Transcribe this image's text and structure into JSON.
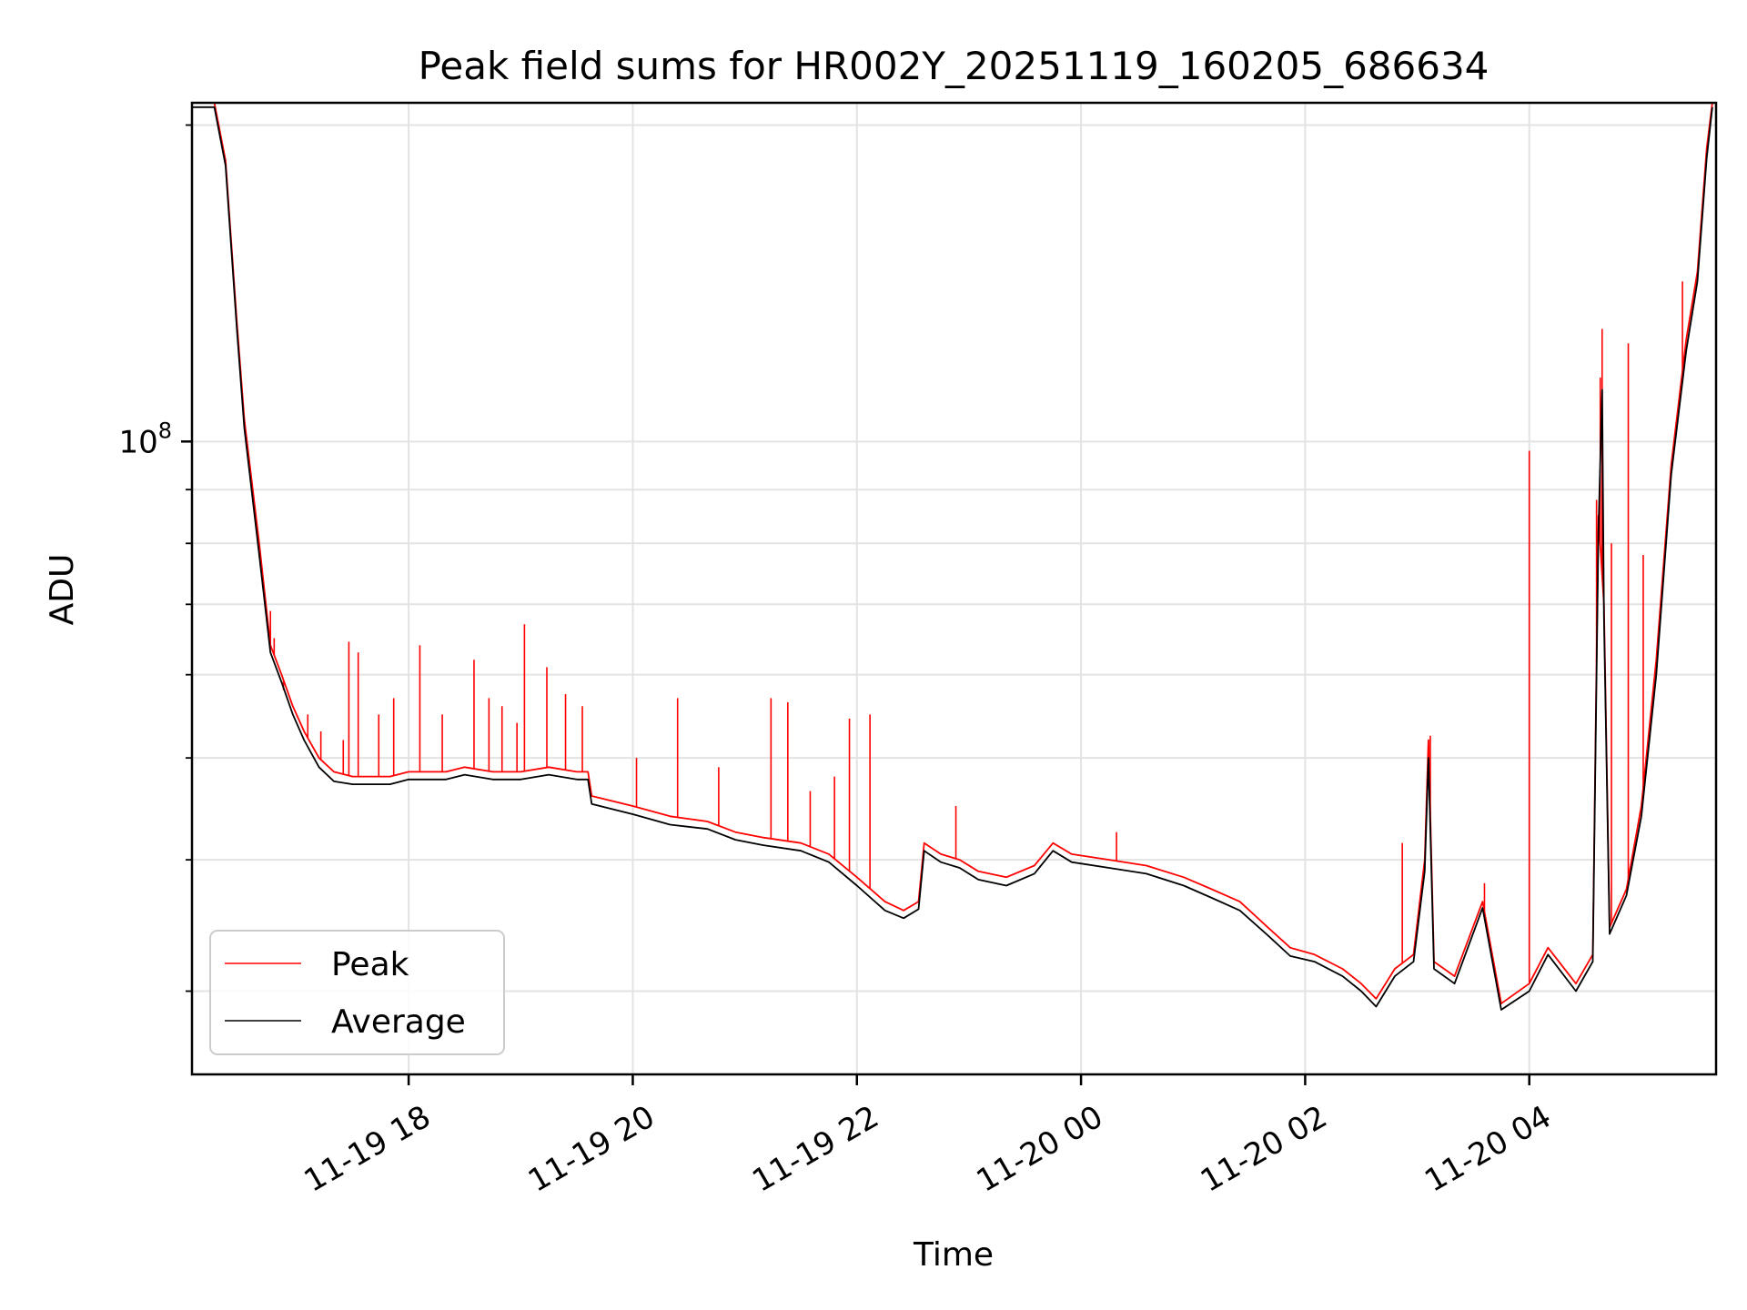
{
  "chart_data": {
    "type": "line",
    "title": "Peak field sums for HR002Y_20251119_160205_686634",
    "xlabel": "Time",
    "ylabel": "ADU",
    "y_scale": "log",
    "xlim": [
      "2025-11-19 16:04",
      "2025-11-20 05:40"
    ],
    "ylim": [
      25000000,
      210000000
    ],
    "grid": true,
    "legend_position": "lower-left",
    "x_ticks": [
      "2025-11-19 18:00",
      "2025-11-19 20:00",
      "2025-11-19 22:00",
      "2025-11-20 00:00",
      "2025-11-20 02:00",
      "2025-11-20 04:00"
    ],
    "x_tick_labels": [
      "11-19 18",
      "11-19 20",
      "11-19 22",
      "11-20 00",
      "11-20 02",
      "11-20 04"
    ],
    "y_major_ticks": [
      100000000
    ],
    "y_major_tick_labels": [
      {
        "base": "10",
        "exp": "8"
      }
    ],
    "y_minor_ticks": [
      30000000,
      40000000,
      50000000,
      60000000,
      70000000,
      80000000,
      90000000,
      200000000
    ],
    "series": [
      {
        "name": "Peak",
        "color": "#ff0000",
        "points": [
          [
            "2025-11-19 16:04",
            210000000
          ],
          [
            "2025-11-19 16:16",
            210000000
          ],
          [
            "2025-11-19 16:22",
            185000000
          ],
          [
            "2025-11-19 16:28",
            130000000
          ],
          [
            "2025-11-19 16:32",
            105000000
          ],
          [
            "2025-11-19 16:40",
            80000000
          ],
          [
            "2025-11-19 16:46",
            64000000
          ],
          [
            "2025-11-19 16:52",
            60000000
          ],
          [
            "2025-11-19 16:58",
            56000000
          ],
          [
            "2025-11-19 17:04",
            53000000
          ],
          [
            "2025-11-19 17:12",
            50000000
          ],
          [
            "2025-11-19 17:20",
            48500000
          ],
          [
            "2025-11-19 17:30",
            48000000
          ],
          [
            "2025-11-19 17:40",
            48000000
          ],
          [
            "2025-11-19 17:50",
            48000000
          ],
          [
            "2025-11-19 18:00",
            48500000
          ],
          [
            "2025-11-19 18:20",
            48500000
          ],
          [
            "2025-11-19 18:30",
            49000000
          ],
          [
            "2025-11-19 18:45",
            48500000
          ],
          [
            "2025-11-19 19:00",
            48500000
          ],
          [
            "2025-11-19 19:15",
            49000000
          ],
          [
            "2025-11-19 19:30",
            48500000
          ],
          [
            "2025-11-19 19:36",
            48500000
          ],
          [
            "2025-11-19 19:38",
            46000000
          ],
          [
            "2025-11-19 20:00",
            45000000
          ],
          [
            "2025-11-19 20:20",
            44000000
          ],
          [
            "2025-11-19 20:40",
            43500000
          ],
          [
            "2025-11-19 20:55",
            42500000
          ],
          [
            "2025-11-19 21:10",
            42000000
          ],
          [
            "2025-11-19 21:30",
            41500000
          ],
          [
            "2025-11-19 21:45",
            40500000
          ],
          [
            "2025-11-19 22:00",
            38500000
          ],
          [
            "2025-11-19 22:15",
            36500000
          ],
          [
            "2025-11-19 22:25",
            35800000
          ],
          [
            "2025-11-19 22:33",
            36500000
          ],
          [
            "2025-11-19 22:36",
            41500000
          ],
          [
            "2025-11-19 22:45",
            40500000
          ],
          [
            "2025-11-19 22:55",
            40000000
          ],
          [
            "2025-11-19 23:05",
            39000000
          ],
          [
            "2025-11-19 23:20",
            38500000
          ],
          [
            "2025-11-19 23:35",
            39500000
          ],
          [
            "2025-11-19 23:45",
            41500000
          ],
          [
            "2025-11-19 23:55",
            40500000
          ],
          [
            "2025-11-20 00:15",
            40000000
          ],
          [
            "2025-11-20 00:35",
            39500000
          ],
          [
            "2025-11-20 00:55",
            38500000
          ],
          [
            "2025-11-20 01:10",
            37500000
          ],
          [
            "2025-11-20 01:25",
            36500000
          ],
          [
            "2025-11-20 01:40",
            34500000
          ],
          [
            "2025-11-20 01:52",
            33000000
          ],
          [
            "2025-11-20 02:05",
            32500000
          ],
          [
            "2025-11-20 02:20",
            31500000
          ],
          [
            "2025-11-20 02:30",
            30500000
          ],
          [
            "2025-11-20 02:38",
            29500000
          ],
          [
            "2025-11-20 02:48",
            31500000
          ],
          [
            "2025-11-20 02:58",
            32500000
          ],
          [
            "2025-11-20 03:04",
            40000000
          ],
          [
            "2025-11-20 03:06",
            52000000
          ],
          [
            "2025-11-20 03:09",
            32000000
          ],
          [
            "2025-11-20 03:20",
            31000000
          ],
          [
            "2025-11-20 03:35",
            36500000
          ],
          [
            "2025-11-20 03:45",
            29200000
          ],
          [
            "2025-11-20 04:00",
            30500000
          ],
          [
            "2025-11-20 04:10",
            33000000
          ],
          [
            "2025-11-20 04:25",
            30500000
          ],
          [
            "2025-11-20 04:34",
            32500000
          ],
          [
            "2025-11-20 04:37",
            85000000
          ],
          [
            "2025-11-20 04:40",
            70000000
          ],
          [
            "2025-11-20 04:43",
            34500000
          ],
          [
            "2025-11-20 04:52",
            37500000
          ],
          [
            "2025-11-20 05:00",
            45000000
          ],
          [
            "2025-11-20 05:08",
            62000000
          ],
          [
            "2025-11-20 05:16",
            95000000
          ],
          [
            "2025-11-20 05:24",
            125000000
          ],
          [
            "2025-11-20 05:30",
            145000000
          ],
          [
            "2025-11-20 05:35",
            190000000
          ],
          [
            "2025-11-20 05:38",
            210000000
          ]
        ],
        "spikes": [
          [
            "2025-11-19 16:46",
            69000000
          ],
          [
            "2025-11-19 16:48",
            65000000
          ],
          [
            "2025-11-19 16:53",
            58000000
          ],
          [
            "2025-11-19 16:57",
            56500000
          ],
          [
            "2025-11-19 17:06",
            55000000
          ],
          [
            "2025-11-19 17:13",
            53000000
          ],
          [
            "2025-11-19 17:25",
            52000000
          ],
          [
            "2025-11-19 17:28",
            64500000
          ],
          [
            "2025-11-19 17:33",
            63000000
          ],
          [
            "2025-11-19 17:44",
            55000000
          ],
          [
            "2025-11-19 17:52",
            57000000
          ],
          [
            "2025-11-19 18:06",
            64000000
          ],
          [
            "2025-11-19 18:18",
            55000000
          ],
          [
            "2025-11-19 18:35",
            62000000
          ],
          [
            "2025-11-19 18:43",
            57000000
          ],
          [
            "2025-11-19 18:50",
            56000000
          ],
          [
            "2025-11-19 18:58",
            54000000
          ],
          [
            "2025-11-19 19:02",
            67000000
          ],
          [
            "2025-11-19 19:14",
            61000000
          ],
          [
            "2025-11-19 19:24",
            57500000
          ],
          [
            "2025-11-19 19:33",
            56000000
          ],
          [
            "2025-11-19 20:02",
            50000000
          ],
          [
            "2025-11-19 20:24",
            57000000
          ],
          [
            "2025-11-19 20:46",
            49000000
          ],
          [
            "2025-11-19 21:14",
            57000000
          ],
          [
            "2025-11-19 21:23",
            56500000
          ],
          [
            "2025-11-19 21:35",
            46500000
          ],
          [
            "2025-11-19 21:48",
            48000000
          ],
          [
            "2025-11-19 21:56",
            54500000
          ],
          [
            "2025-11-19 22:07",
            55000000
          ],
          [
            "2025-11-19 22:53",
            45000000
          ],
          [
            "2025-11-20 00:19",
            42500000
          ],
          [
            "2025-11-20 02:52",
            41500000
          ],
          [
            "2025-11-20 03:07",
            52500000
          ],
          [
            "2025-11-20 03:36",
            38000000
          ],
          [
            "2025-11-20 04:00",
            98000000
          ],
          [
            "2025-11-20 04:36",
            88000000
          ],
          [
            "2025-11-20 04:38",
            115000000
          ],
          [
            "2025-11-20 04:39",
            128000000
          ],
          [
            "2025-11-20 04:53",
            124000000
          ],
          [
            "2025-11-20 04:44",
            80000000
          ],
          [
            "2025-11-20 05:01",
            78000000
          ],
          [
            "2025-11-20 05:22",
            142000000
          ]
        ]
      },
      {
        "name": "Average",
        "color": "#000000",
        "points": [
          [
            "2025-11-19 16:04",
            208000000
          ],
          [
            "2025-11-19 16:16",
            208000000
          ],
          [
            "2025-11-19 16:22",
            183000000
          ],
          [
            "2025-11-19 16:28",
            128000000
          ],
          [
            "2025-11-19 16:32",
            103000000
          ],
          [
            "2025-11-19 16:40",
            78000000
          ],
          [
            "2025-11-19 16:46",
            63000000
          ],
          [
            "2025-11-19 16:52",
            59000000
          ],
          [
            "2025-11-19 16:58",
            55000000
          ],
          [
            "2025-11-19 17:04",
            52000000
          ],
          [
            "2025-11-19 17:12",
            49000000
          ],
          [
            "2025-11-19 17:20",
            47500000
          ],
          [
            "2025-11-19 17:30",
            47200000
          ],
          [
            "2025-11-19 17:40",
            47200000
          ],
          [
            "2025-11-19 17:50",
            47200000
          ],
          [
            "2025-11-19 18:00",
            47700000
          ],
          [
            "2025-11-19 18:20",
            47700000
          ],
          [
            "2025-11-19 18:30",
            48200000
          ],
          [
            "2025-11-19 18:45",
            47700000
          ],
          [
            "2025-11-19 19:00",
            47700000
          ],
          [
            "2025-11-19 19:15",
            48200000
          ],
          [
            "2025-11-19 19:30",
            47700000
          ],
          [
            "2025-11-19 19:36",
            47700000
          ],
          [
            "2025-11-19 19:38",
            45200000
          ],
          [
            "2025-11-19 20:00",
            44200000
          ],
          [
            "2025-11-19 20:20",
            43200000
          ],
          [
            "2025-11-19 20:40",
            42800000
          ],
          [
            "2025-11-19 20:55",
            41800000
          ],
          [
            "2025-11-19 21:10",
            41300000
          ],
          [
            "2025-11-19 21:30",
            40800000
          ],
          [
            "2025-11-19 21:45",
            39800000
          ],
          [
            "2025-11-19 22:00",
            37800000
          ],
          [
            "2025-11-19 22:15",
            35800000
          ],
          [
            "2025-11-19 22:25",
            35200000
          ],
          [
            "2025-11-19 22:33",
            35900000
          ],
          [
            "2025-11-19 22:36",
            40800000
          ],
          [
            "2025-11-19 22:45",
            39800000
          ],
          [
            "2025-11-19 22:55",
            39300000
          ],
          [
            "2025-11-19 23:05",
            38300000
          ],
          [
            "2025-11-19 23:20",
            37800000
          ],
          [
            "2025-11-19 23:35",
            38800000
          ],
          [
            "2025-11-19 23:45",
            40800000
          ],
          [
            "2025-11-19 23:55",
            39800000
          ],
          [
            "2025-11-20 00:15",
            39300000
          ],
          [
            "2025-11-20 00:35",
            38800000
          ],
          [
            "2025-11-20 00:55",
            37800000
          ],
          [
            "2025-11-20 01:10",
            36800000
          ],
          [
            "2025-11-20 01:25",
            35800000
          ],
          [
            "2025-11-20 01:40",
            33900000
          ],
          [
            "2025-11-20 01:52",
            32400000
          ],
          [
            "2025-11-20 02:05",
            32000000
          ],
          [
            "2025-11-20 02:20",
            31000000
          ],
          [
            "2025-11-20 02:30",
            30000000
          ],
          [
            "2025-11-20 02:38",
            29000000
          ],
          [
            "2025-11-20 02:48",
            31000000
          ],
          [
            "2025-11-20 02:58",
            32000000
          ],
          [
            "2025-11-20 03:04",
            39000000
          ],
          [
            "2025-11-20 03:06",
            50000000
          ],
          [
            "2025-11-20 03:09",
            31500000
          ],
          [
            "2025-11-20 03:20",
            30500000
          ],
          [
            "2025-11-20 03:35",
            36000000
          ],
          [
            "2025-11-20 03:45",
            28800000
          ],
          [
            "2025-11-20 04:00",
            30000000
          ],
          [
            "2025-11-20 04:10",
            32500000
          ],
          [
            "2025-11-20 04:25",
            30000000
          ],
          [
            "2025-11-20 04:34",
            32000000
          ],
          [
            "2025-11-20 04:37",
            82000000
          ],
          [
            "2025-11-20 04:39",
            112000000
          ],
          [
            "2025-11-20 04:40",
            68000000
          ],
          [
            "2025-11-20 04:43",
            34000000
          ],
          [
            "2025-11-20 04:52",
            37000000
          ],
          [
            "2025-11-20 05:00",
            44000000
          ],
          [
            "2025-11-20 05:08",
            60000000
          ],
          [
            "2025-11-20 05:16",
            93000000
          ],
          [
            "2025-11-20 05:24",
            122000000
          ],
          [
            "2025-11-20 05:30",
            142000000
          ],
          [
            "2025-11-20 05:35",
            186000000
          ],
          [
            "2025-11-20 05:38",
            208000000
          ]
        ]
      }
    ]
  }
}
